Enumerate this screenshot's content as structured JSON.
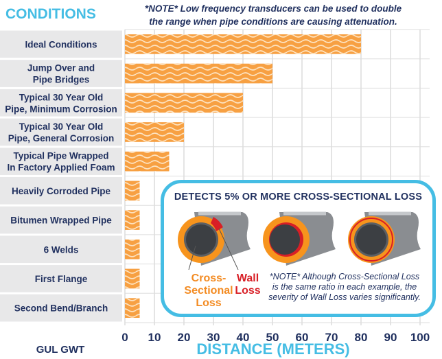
{
  "header": {
    "title": "CONDITIONS",
    "note": "*NOTE* Low frequency transducers can be used to double the range when pipe conditions are causing attenuation.",
    "note_line1": "*NOTE* Low frequency transducers can be used to double",
    "note_line2": "the range when pipe conditions are causing attenuation."
  },
  "chart_data": {
    "type": "bar",
    "orientation": "horizontal",
    "categories": [
      [
        "Ideal Conditions"
      ],
      [
        "Jump Over and",
        "Pipe Bridges"
      ],
      [
        "Typical 30 Year Old",
        "Pipe, Minimum Corrosion"
      ],
      [
        "Typical 30 Year Old",
        "Pipe, General Corrosion"
      ],
      [
        "Typical Pipe Wrapped",
        "In Factory Applied Foam"
      ],
      [
        "Heavily Corroded Pipe"
      ],
      [
        "Bitumen Wrapped Pipe"
      ],
      [
        "6 Welds"
      ],
      [
        "First Flange"
      ],
      [
        "Second Bend/Branch"
      ]
    ],
    "values": [
      80,
      50,
      40,
      20,
      15,
      5,
      5,
      5,
      5,
      5
    ],
    "xlim": [
      0,
      100
    ],
    "xticks": [
      "0",
      "10",
      "20",
      "30",
      "40",
      "50",
      "60",
      "70",
      "80",
      "90",
      "100"
    ],
    "xlabel": "DISTANCE (METERS)",
    "corner_label": "GUL GWT",
    "grid": true,
    "colors": {
      "bar": "#f7a042",
      "bar_wave": "#fde3c1",
      "label_bg": "#e8e8e9",
      "grid": "#c9c9c9",
      "accent": "#45bde4",
      "text": "#1f2f5e"
    }
  },
  "callout": {
    "heading": "DETECTS 5% OR MORE CROSS-SECTIONAL LOSS",
    "cross_label": [
      "Cross-",
      "Sectional",
      "Loss"
    ],
    "wall_label": [
      "Wall",
      "Loss"
    ],
    "note_lines": [
      "*NOTE* Although Cross-Sectional Loss",
      "is the same ratio in each example, the",
      "severity of Wall Loss varies significantly."
    ],
    "colors": {
      "pipe_outer": "#f7941d",
      "pipe_steel": "#8a8d91",
      "loss": "#d81f26",
      "border": "#45bde4"
    }
  }
}
